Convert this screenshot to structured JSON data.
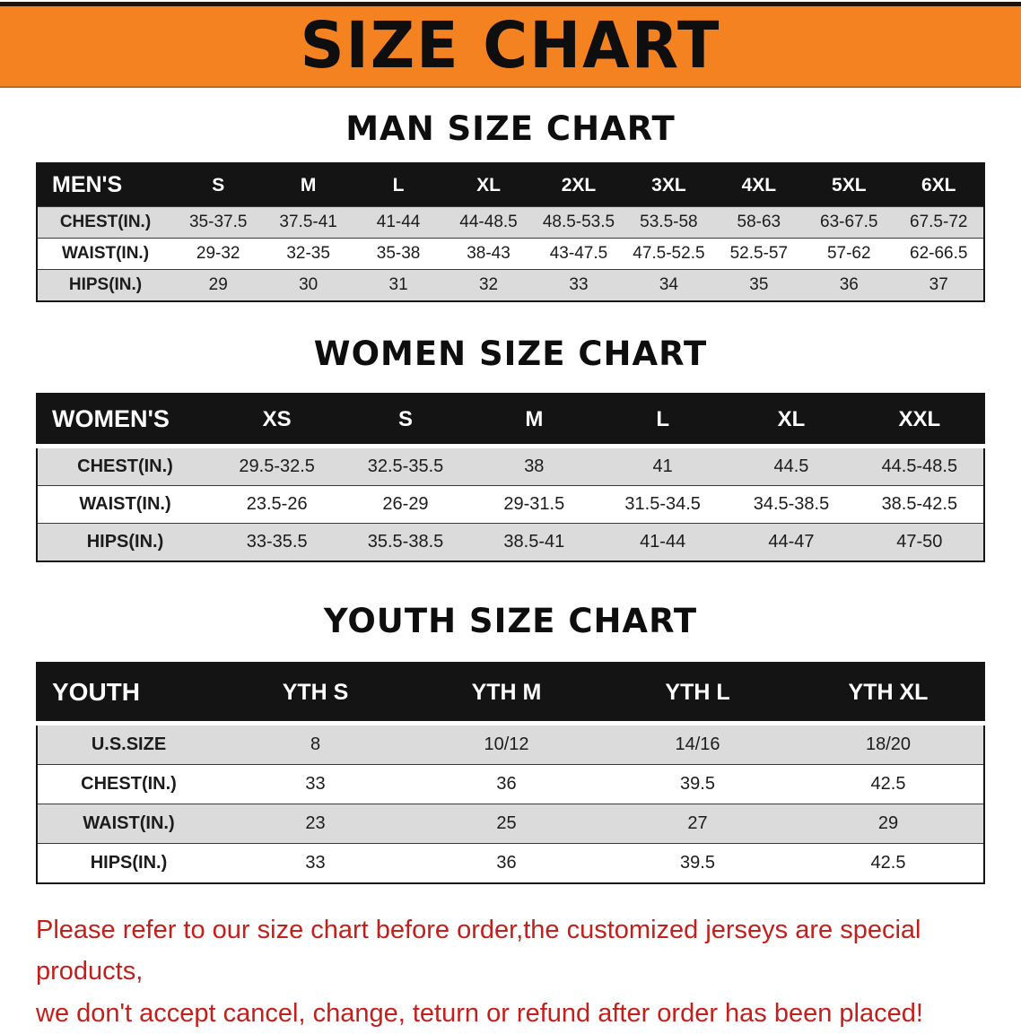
{
  "banner": {
    "title": "SIZE CHART",
    "bg_color": "#F58220",
    "text_color": "#0E0E0E"
  },
  "sections": [
    {
      "id": "men",
      "heading": "MAN SIZE CHART",
      "table": {
        "header": [
          "MEN'S",
          "S",
          "M",
          "L",
          "XL",
          "2XL",
          "3XL",
          "4XL",
          "5XL",
          "6XL"
        ],
        "rows": [
          [
            "CHEST(IN.)",
            "35-37.5",
            "37.5-41",
            "41-44",
            "44-48.5",
            "48.5-53.5",
            "53.5-58",
            "58-63",
            "63-67.5",
            "67.5-72"
          ],
          [
            "WAIST(IN.)",
            "29-32",
            "32-35",
            "35-38",
            "38-43",
            "43-47.5",
            "47.5-52.5",
            "52.5-57",
            "57-62",
            "62-66.5"
          ],
          [
            "HIPS(IN.)",
            "29",
            "30",
            "31",
            "32",
            "33",
            "34",
            "35",
            "36",
            "37"
          ]
        ]
      }
    },
    {
      "id": "women",
      "heading": "WOMEN SIZE CHART",
      "table": {
        "header": [
          "WOMEN'S",
          "XS",
          "S",
          "M",
          "L",
          "XL",
          "XXL"
        ],
        "rows": [
          [
            "CHEST(IN.)",
            "29.5-32.5",
            "32.5-35.5",
            "38",
            "41",
            "44.5",
            "44.5-48.5"
          ],
          [
            "WAIST(IN.)",
            "23.5-26",
            "26-29",
            "29-31.5",
            "31.5-34.5",
            "34.5-38.5",
            "38.5-42.5"
          ],
          [
            "HIPS(IN.)",
            "33-35.5",
            "35.5-38.5",
            "38.5-41",
            "41-44",
            "44-47",
            "47-50"
          ]
        ]
      }
    },
    {
      "id": "youth",
      "heading": "YOUTH SIZE CHART",
      "table": {
        "header": [
          "YOUTH",
          "YTH S",
          "YTH M",
          "YTH L",
          "YTH XL"
        ],
        "rows": [
          [
            "U.S.SIZE",
            "8",
            "10/12",
            "14/16",
            "18/20"
          ],
          [
            "CHEST(IN.)",
            "33",
            "36",
            "39.5",
            "42.5"
          ],
          [
            "WAIST(IN.)",
            "23",
            "25",
            "27",
            "29"
          ],
          [
            "HIPS(IN.)",
            "33",
            "36",
            "39.5",
            "42.5"
          ]
        ]
      }
    }
  ],
  "disclaimer": {
    "line1": "Please refer to our size chart before order,the customized jerseys are special products,",
    "line2": "we don't accept cancel, change, teturn or refund after order has been placed!",
    "color": "#C4201B"
  }
}
